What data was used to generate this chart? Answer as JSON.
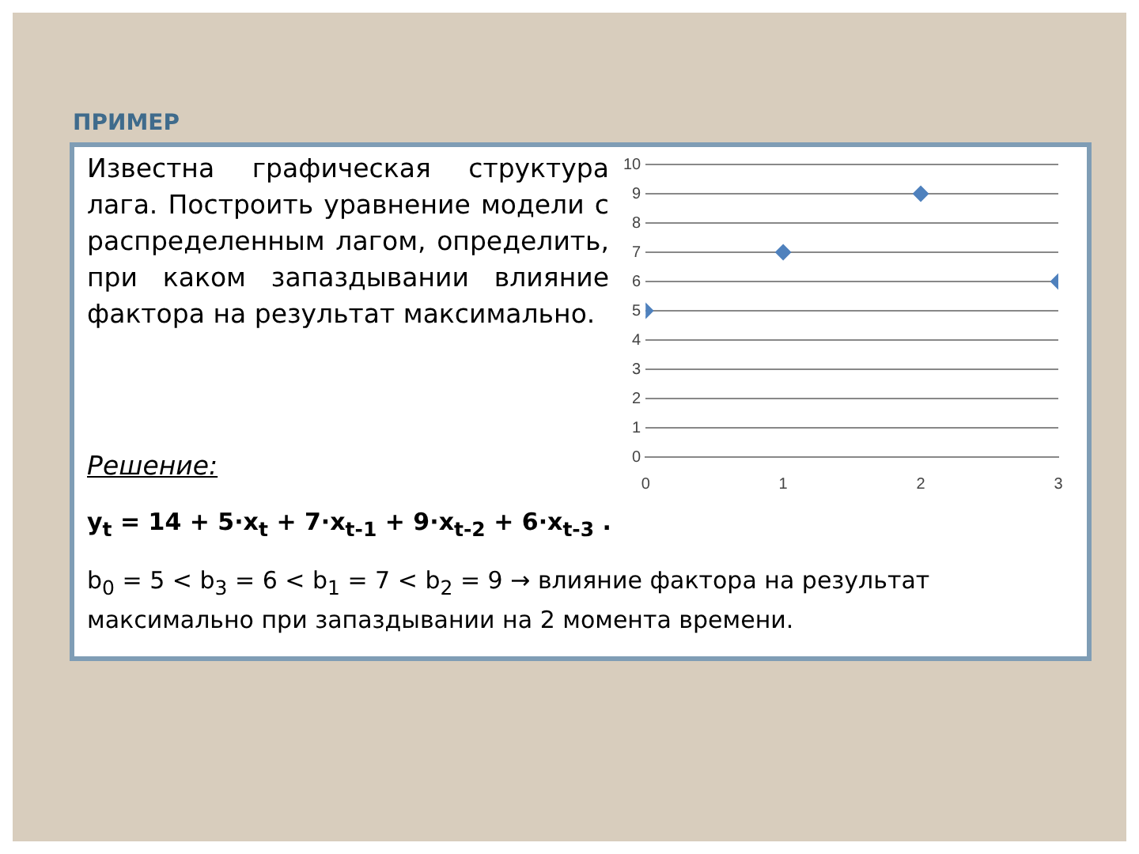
{
  "chart_data": {
    "type": "scatter",
    "title": "ПРИМЕР",
    "annotations": [
      "Известна графическая структура лага. Построить уравнение модели с распределенным лагом, определить, при каком запаздывании влияние фактора на результат максимально.",
      "Решение:",
      "y$_{t}$ = 14 + 5·x$_{t}$ + 7·x$_{t-1}$ + 9·x$_{t-2}$ + 6·x$_{t-3}$ .",
      "b$_{0}$ = 5 < b$_{3}$ = 6 < b$_{1}$ = 7 < b$_{2}$ = 9 → влияние фактора на результат максимально при запаздывании на 2 момента времени."
    ],
    "x": [
      0,
      1,
      2,
      3
    ],
    "series": [
      {
        "color": "#4f81bd",
        "values": [
          5,
          7,
          9,
          6
        ]
      }
    ],
    "xlim": [
      0,
      3
    ],
    "xticks": [
      0,
      1,
      2,
      3
    ],
    "ylim": [
      0,
      10
    ],
    "yticks": [
      0,
      1,
      2,
      3,
      4,
      5,
      6,
      7,
      8,
      9,
      10
    ],
    "grid": "y",
    "marker": "diamond",
    "legend": false
  }
}
